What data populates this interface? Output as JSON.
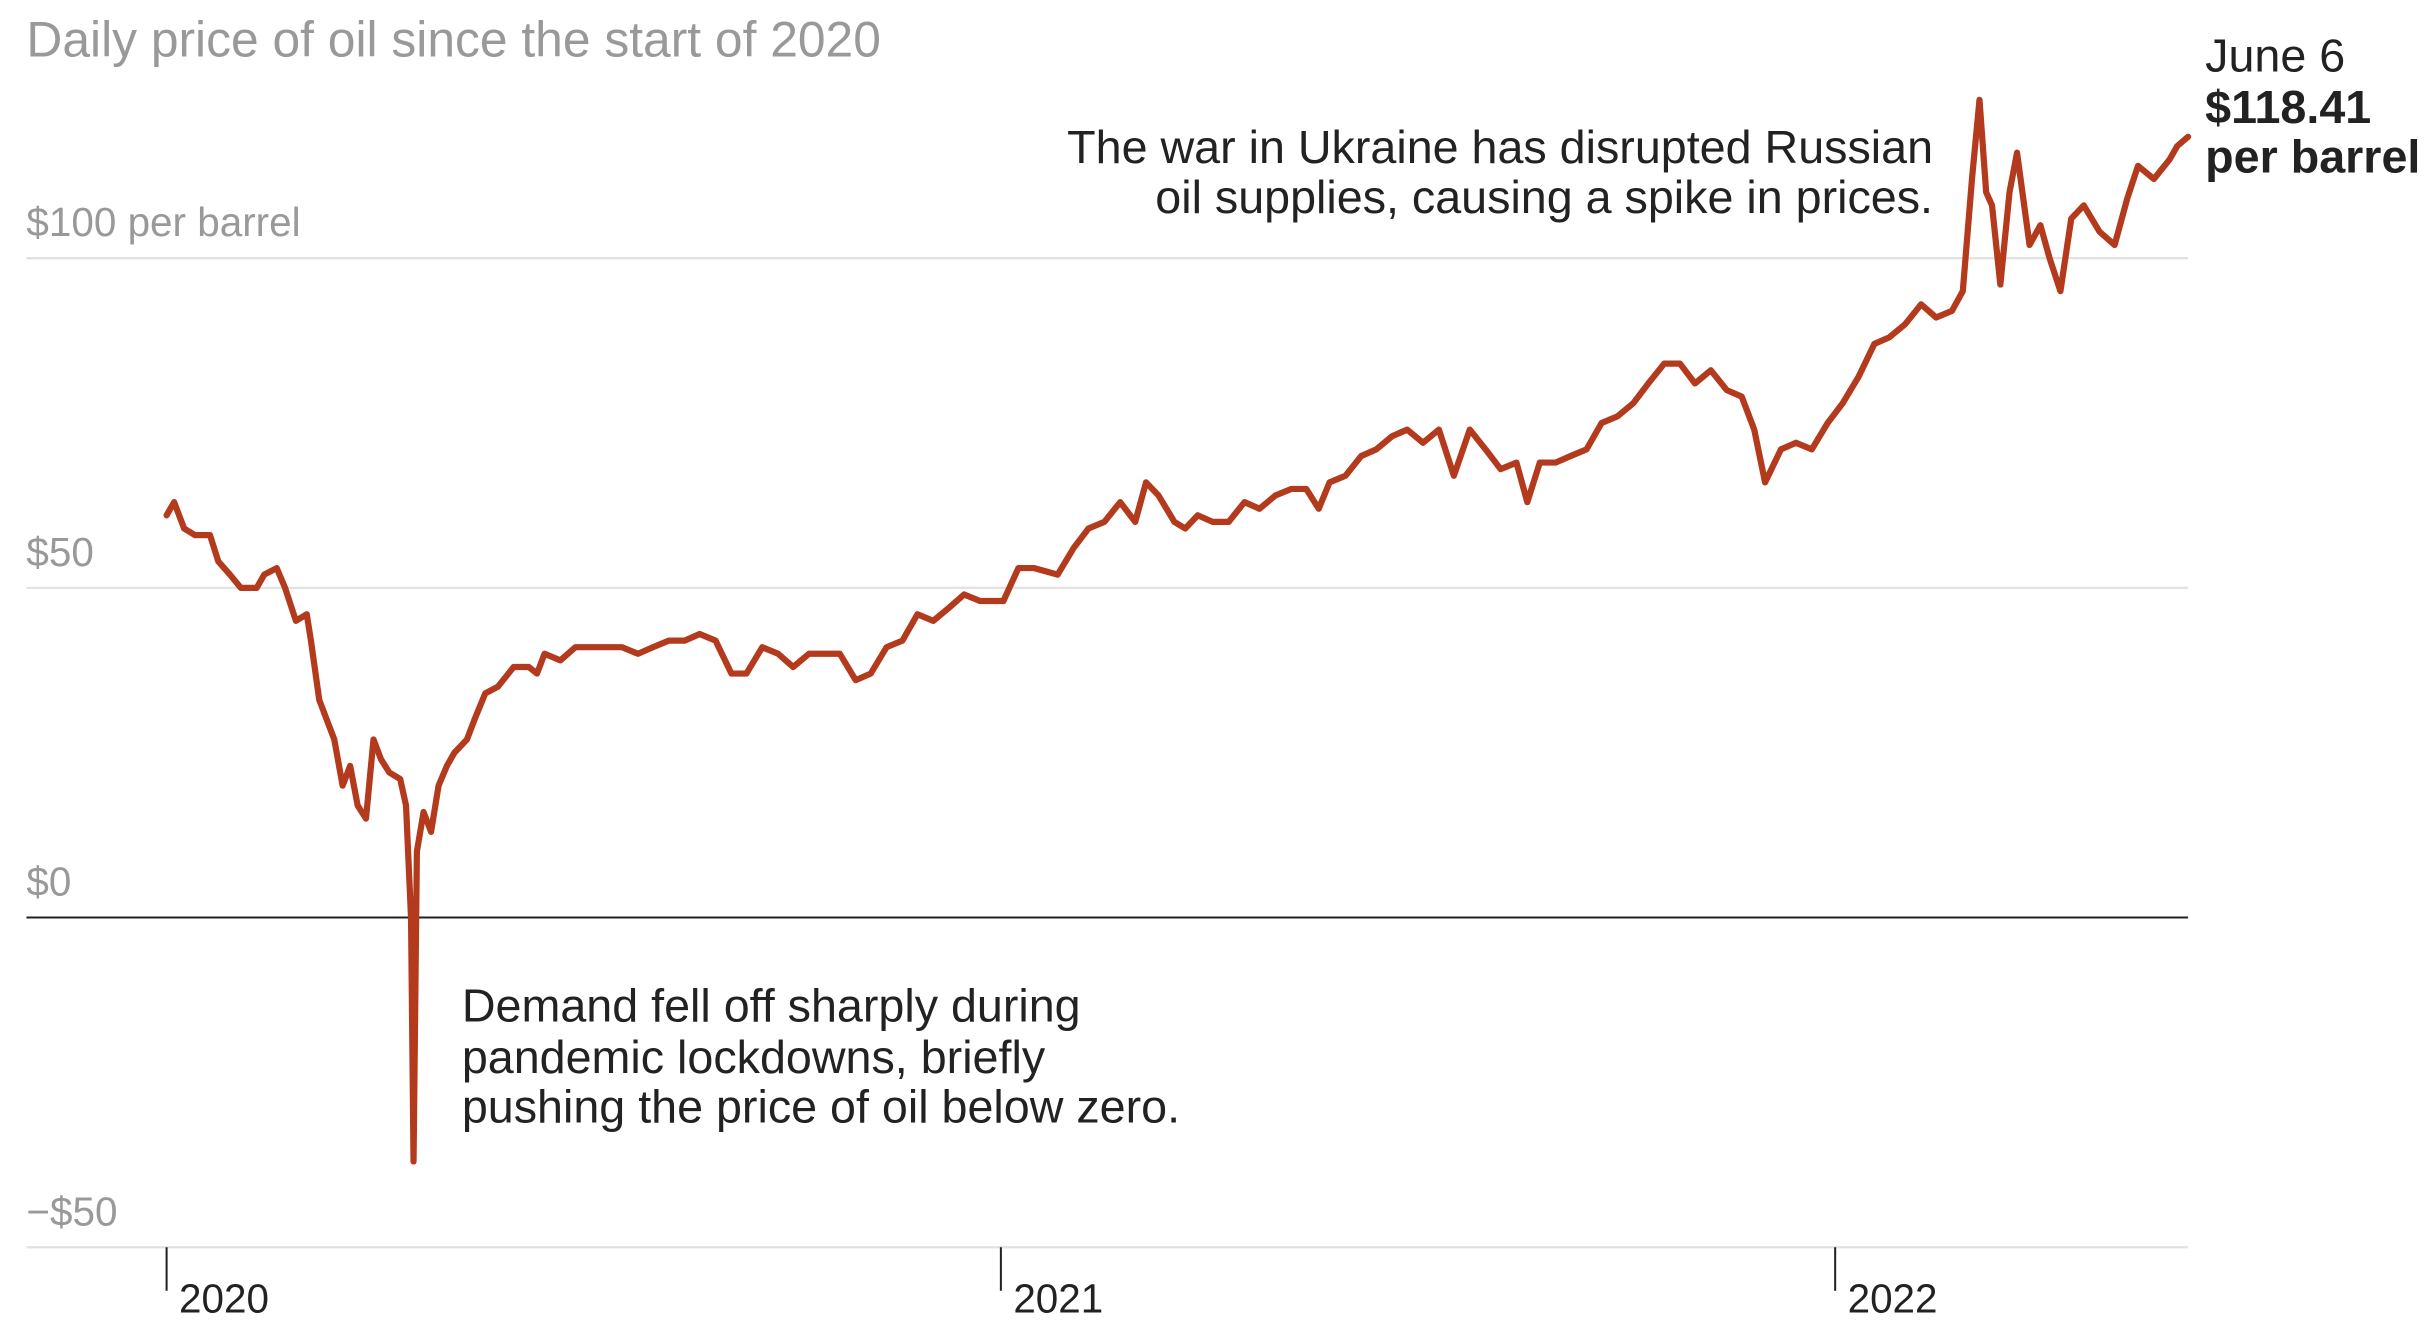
{
  "chart_data": {
    "type": "line",
    "title": "Daily price of oil since the start of 2020",
    "x": [
      2020.0,
      2020.009,
      2020.021,
      2020.034,
      2020.052,
      2020.062,
      2020.076,
      2020.089,
      2020.108,
      2020.117,
      2020.132,
      2020.142,
      2020.155,
      2020.168,
      2020.173,
      2020.183,
      2020.192,
      2020.201,
      2020.211,
      2020.22,
      2020.229,
      2020.239,
      2020.248,
      2020.257,
      2020.267,
      2020.28,
      2020.287,
      2020.293,
      2020.296,
      2020.3,
      2020.308,
      2020.317,
      2020.326,
      2020.336,
      2020.345,
      2020.36,
      2020.369,
      2020.382,
      2020.397,
      2020.416,
      2020.434,
      2020.444,
      2020.453,
      2020.472,
      2020.49,
      2020.509,
      2020.528,
      2020.546,
      2020.565,
      2020.583,
      2020.602,
      2020.621,
      2020.639,
      2020.658,
      2020.677,
      2020.695,
      2020.714,
      2020.733,
      2020.751,
      2020.77,
      2020.788,
      2020.807,
      2020.826,
      2020.844,
      2020.863,
      2020.882,
      2020.9,
      2020.919,
      2020.938,
      2020.956,
      2020.975,
      2021.003,
      2021.021,
      2021.04,
      2021.068,
      2021.087,
      2021.105,
      2021.124,
      2021.143,
      2021.161,
      2021.174,
      2021.189,
      2021.208,
      2021.221,
      2021.236,
      2021.254,
      2021.273,
      2021.292,
      2021.31,
      2021.329,
      2021.348,
      2021.366,
      2021.381,
      2021.394,
      2021.413,
      2021.432,
      2021.45,
      2021.469,
      2021.487,
      2021.506,
      2021.525,
      2021.543,
      2021.562,
      2021.581,
      2021.599,
      2021.618,
      2021.631,
      2021.646,
      2021.665,
      2021.683,
      2021.702,
      2021.72,
      2021.739,
      2021.758,
      2021.776,
      2021.795,
      2021.814,
      2021.832,
      2021.851,
      2021.87,
      2021.888,
      2021.903,
      2021.916,
      2021.935,
      2021.953,
      2021.972,
      2021.991,
      2022.009,
      2022.028,
      2022.047,
      2022.065,
      2022.084,
      2022.103,
      2022.121,
      2022.14,
      2022.153,
      2022.164,
      2022.173,
      2022.181,
      2022.188,
      2022.198,
      2022.209,
      2022.218,
      2022.233,
      2022.246,
      2022.257,
      2022.27,
      2022.283,
      2022.298,
      2022.317,
      2022.335,
      2022.35,
      2022.363,
      2022.382,
      2022.401,
      2022.41,
      2022.423
    ],
    "series": [
      {
        "name": "Oil price",
        "color": "#b33a1c",
        "values": [
          61,
          63,
          59,
          58,
          58,
          54,
          52,
          50,
          50,
          52,
          53,
          50,
          45,
          46,
          42,
          33,
          30,
          27,
          20,
          23,
          17,
          15,
          27,
          24,
          22,
          21,
          17,
          0,
          -37,
          10,
          16,
          13,
          20,
          23,
          25,
          27,
          30,
          34,
          35,
          38,
          38,
          37,
          40,
          39,
          41,
          41,
          41,
          41,
          40,
          41,
          42,
          42,
          43,
          42,
          37,
          37,
          41,
          40,
          38,
          40,
          40,
          40,
          36,
          37,
          41,
          42,
          46,
          45,
          47,
          49,
          48,
          48,
          53,
          53,
          52,
          56,
          59,
          60,
          63,
          60,
          66,
          64,
          60,
          59,
          61,
          60,
          60,
          63,
          62,
          64,
          65,
          65,
          62,
          66,
          67,
          70,
          71,
          73,
          74,
          72,
          74,
          67,
          74,
          71,
          68,
          69,
          63,
          69,
          69,
          70,
          71,
          75,
          76,
          78,
          81,
          84,
          84,
          81,
          83,
          80,
          79,
          74,
          66,
          71,
          72,
          71,
          75,
          78,
          82,
          87,
          88,
          90,
          93,
          91,
          92,
          95,
          112,
          124,
          110,
          108,
          96,
          110,
          116,
          102,
          105,
          100,
          95,
          106,
          108,
          104,
          102,
          109,
          114,
          112,
          115,
          117,
          118.41
        ]
      }
    ],
    "xlim": [
      2019.832,
      2022.423
    ],
    "xticks": [
      2020,
      2021,
      2022
    ],
    "ylim": [
      -50,
      125
    ],
    "yticks": [
      {
        "value": -50,
        "label": "−$50"
      },
      {
        "value": 0,
        "label": "$0"
      },
      {
        "value": 50,
        "label": "$50"
      },
      {
        "value": 100,
        "label": "$100 per barrel"
      }
    ],
    "grid": true,
    "annotations": [
      {
        "lines": [
          "The war in Ukraine has disrupted Russian",
          "oil supplies, causing a spike in prices."
        ]
      },
      {
        "lines": [
          "Demand fell off sharply during",
          "pandemic lockdowns, briefly",
          "pushing the price of oil below zero."
        ]
      }
    ],
    "end_label": {
      "date": "June 6",
      "value_label": "$118.41",
      "unit": "per barrel"
    }
  }
}
